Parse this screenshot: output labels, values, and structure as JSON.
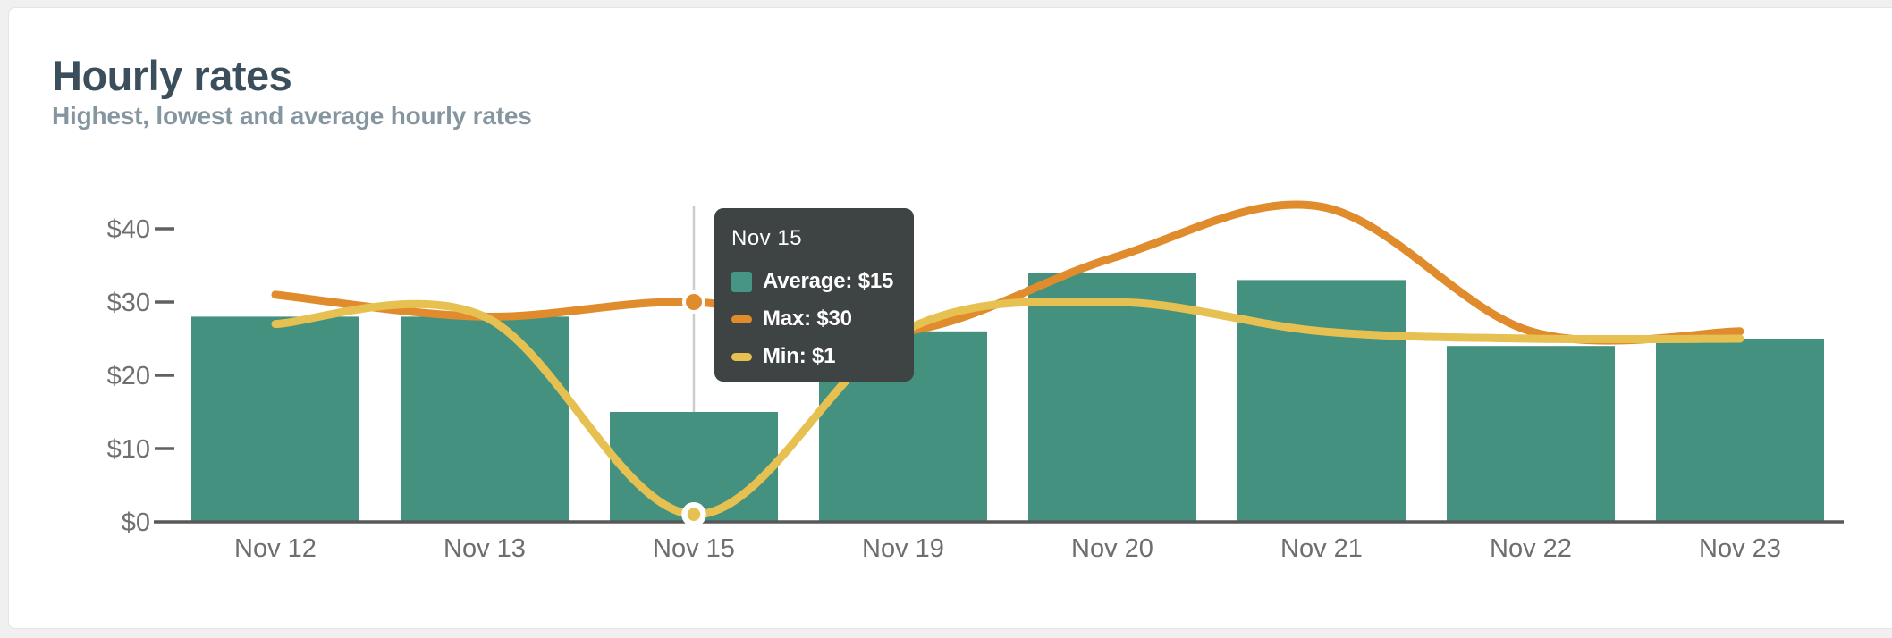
{
  "page": {
    "background_color": "#f1f0f1",
    "card_background_color": "#ffffff"
  },
  "header": {
    "title": "Hourly rates",
    "subtitle": "Highest, lowest and average hourly rates",
    "title_color": "#3a4e5c",
    "subtitle_color": "#8696a0"
  },
  "chart_data": {
    "type": "bar",
    "title": "Hourly rates",
    "subtitle": "Highest, lowest and average hourly rates",
    "categories": [
      "Nov 12",
      "Nov 13",
      "Nov 15",
      "Nov 19",
      "Nov 20",
      "Nov 21",
      "Nov 22",
      "Nov 23"
    ],
    "series": [
      {
        "name": "Average",
        "type": "bar",
        "color": "#43917e",
        "values": [
          28,
          28,
          15,
          26,
          34,
          33,
          24,
          25
        ]
      },
      {
        "name": "Max",
        "type": "line",
        "color": "#e08c2d",
        "values": [
          31,
          28,
          30,
          26,
          36,
          43,
          26,
          26
        ]
      },
      {
        "name": "Min",
        "type": "line",
        "color": "#e6c152",
        "values": [
          27,
          28,
          1,
          26,
          30,
          26,
          25,
          25
        ]
      }
    ],
    "y_axis": {
      "tick_values": [
        0,
        10,
        20,
        30,
        40
      ],
      "tick_labels": [
        "$0",
        "$10",
        "$20",
        "$30",
        "$40"
      ],
      "range": [
        0,
        44
      ]
    },
    "grid": false,
    "legend_position": "none",
    "axis_color": "#57585a",
    "label_color": "#707070",
    "highlight": {
      "category": "Nov 15",
      "highlight_index": 2,
      "guideline_color": "#cccccc",
      "tooltip": {
        "title": "Nov 15",
        "background_color": "#3e4344",
        "text_color": "#ffffff",
        "rows": [
          {
            "series": "Average",
            "text": "Average: $15",
            "value": 15,
            "swatch_color": "#459684",
            "swatch_shape": "square"
          },
          {
            "series": "Max",
            "text": "Max: $30",
            "value": 30,
            "swatch_color": "#e08c2d",
            "swatch_shape": "dash"
          },
          {
            "series": "Min",
            "text": "Min: $1",
            "value": 1,
            "swatch_color": "#e6c152",
            "swatch_shape": "dash"
          }
        ]
      }
    }
  }
}
